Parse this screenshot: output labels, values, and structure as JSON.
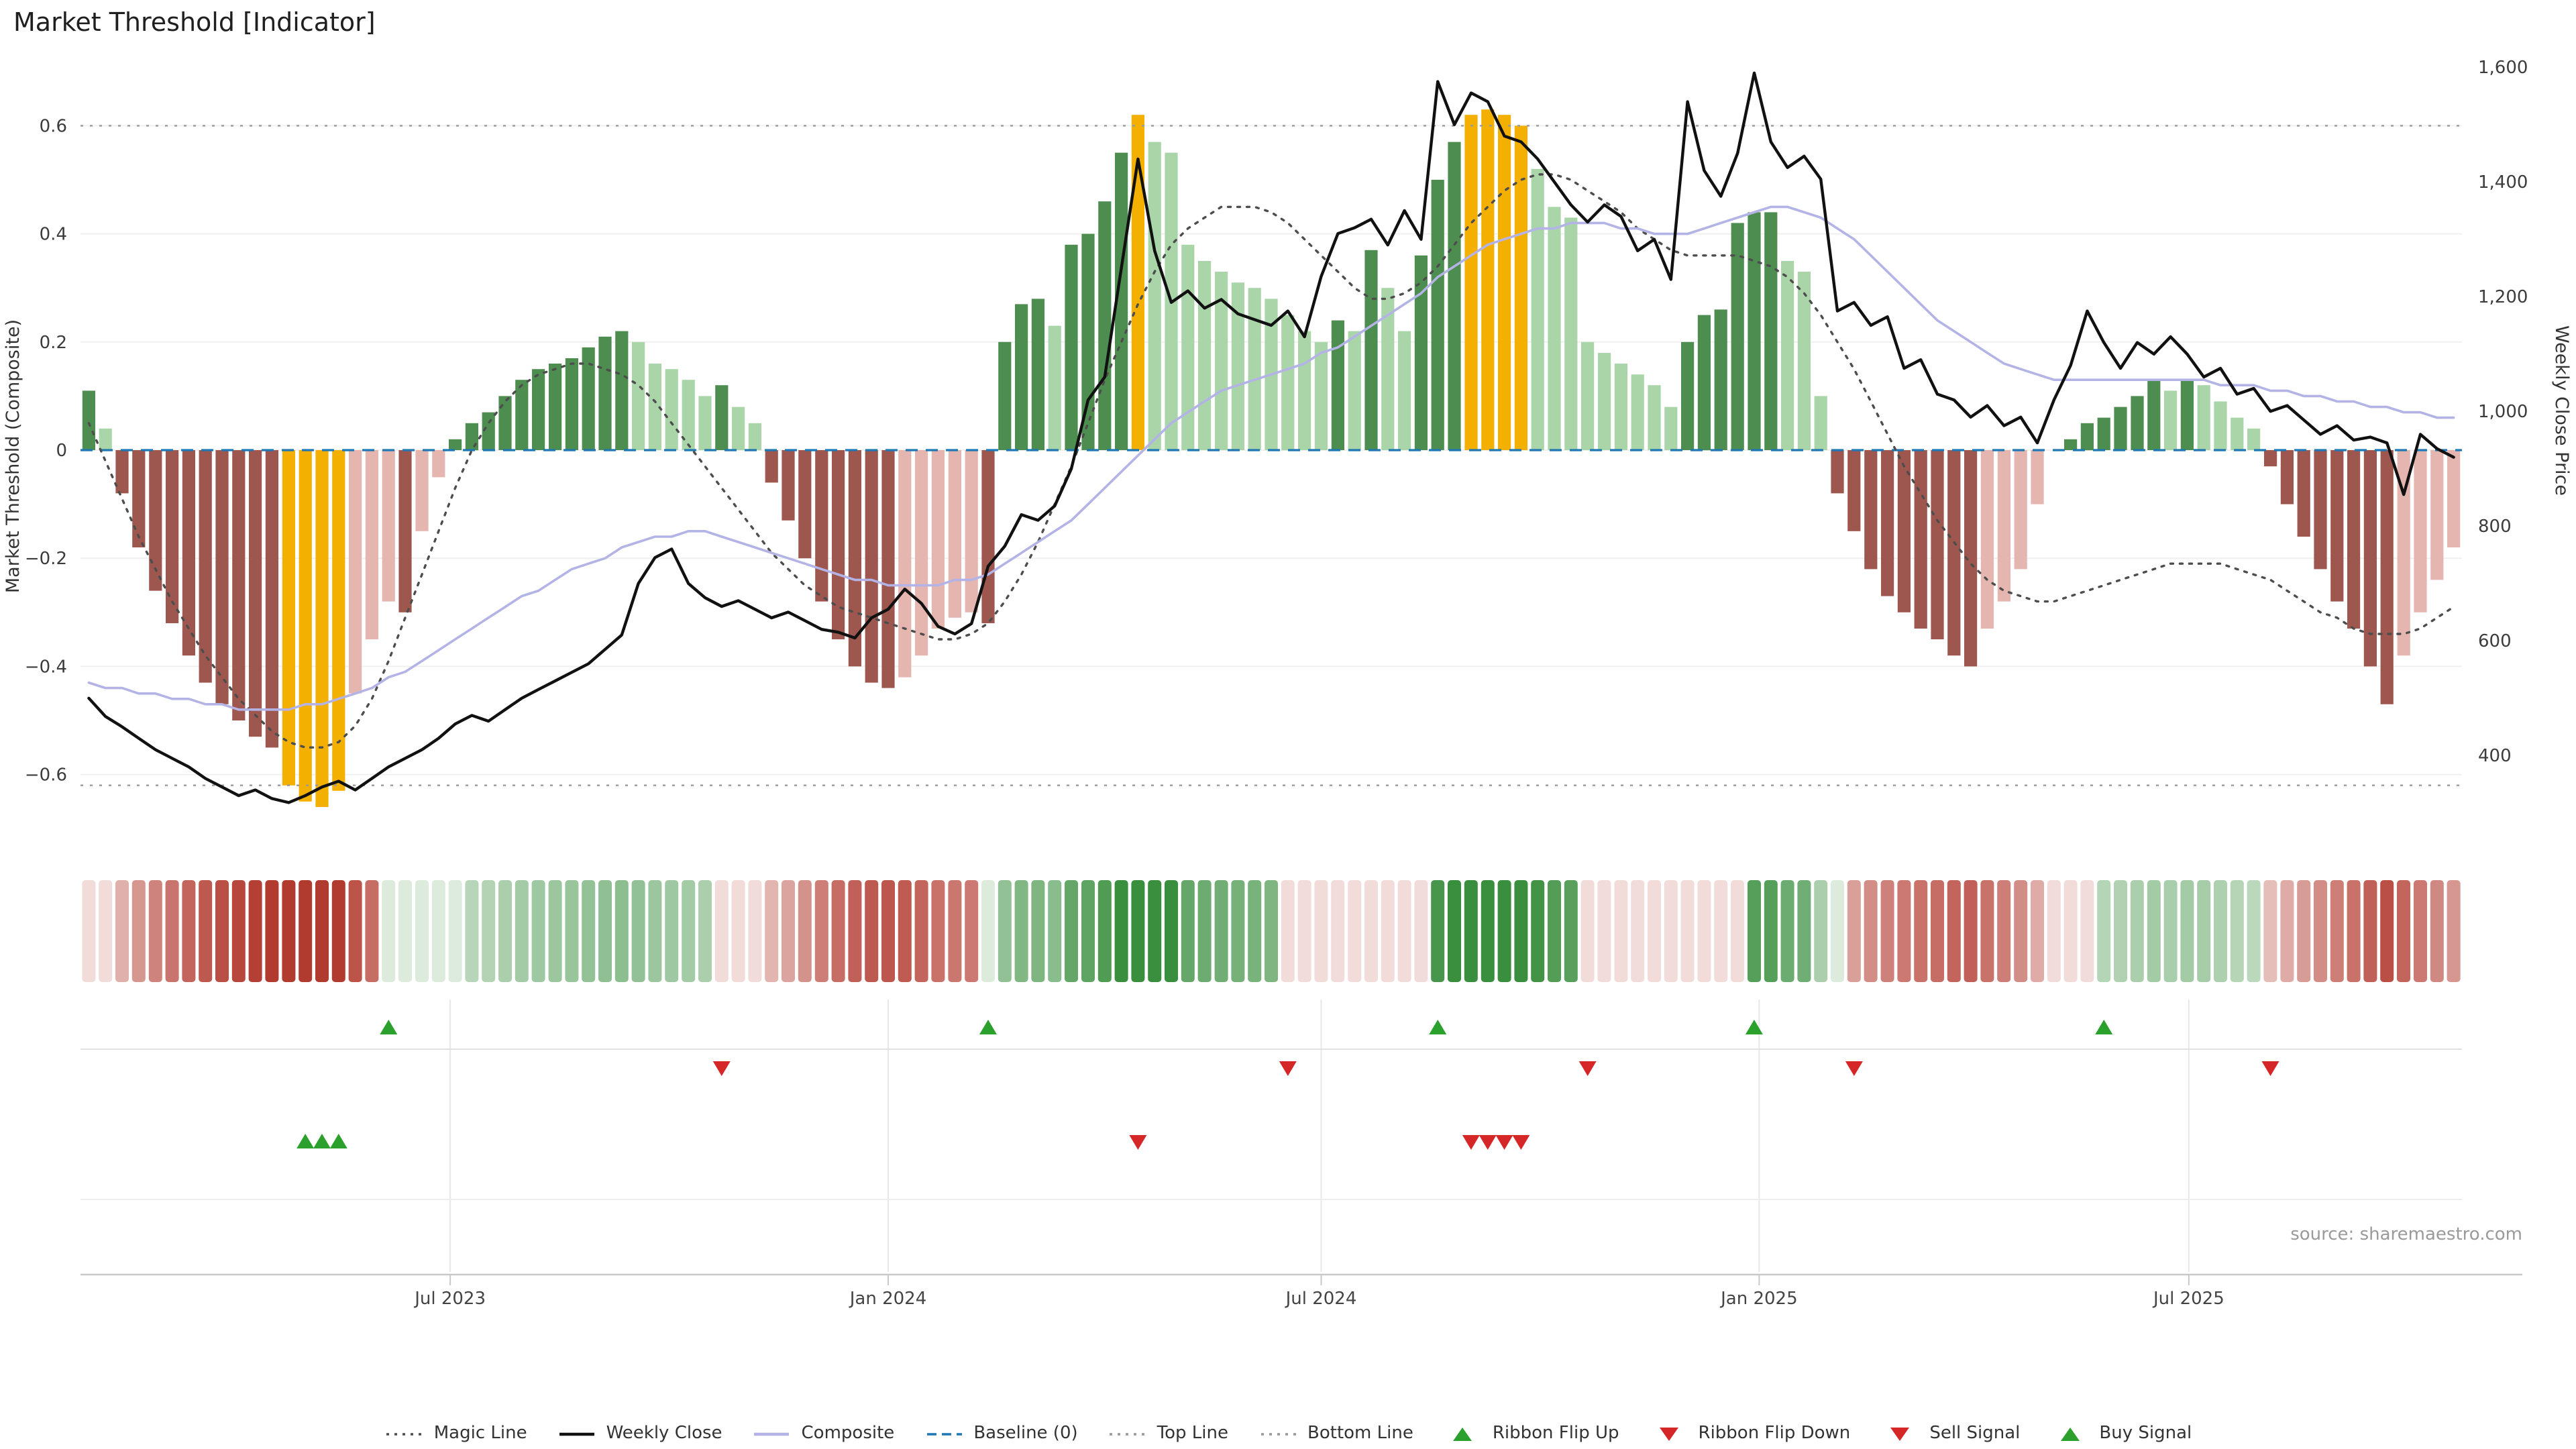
{
  "title": "Market Threshold [Indicator]",
  "source_credit": "source: sharemaestro.com",
  "axes": {
    "left_label": "Market Threshold (Composite)",
    "right_label": "Weekly Close Price"
  },
  "legend": [
    {
      "label": "Magic Line",
      "marker": "dotted",
      "color": "#4d4d4d"
    },
    {
      "label": "Weekly Close",
      "marker": "solid",
      "color": "#111111"
    },
    {
      "label": "Composite",
      "marker": "solid",
      "color": "#b3b3e6"
    },
    {
      "label": "Baseline (0)",
      "marker": "dashed",
      "color": "#1f77b4"
    },
    {
      "label": "Top Line",
      "marker": "dotted",
      "color": "#999999"
    },
    {
      "label": "Bottom Line",
      "marker": "dotted",
      "color": "#999999"
    },
    {
      "label": "Ribbon Flip Up",
      "marker": "tri-up",
      "color": "#2ca02c"
    },
    {
      "label": "Ribbon Flip Down",
      "marker": "tri-down",
      "color": "#d62728"
    },
    {
      "label": "Sell Signal",
      "marker": "tri-down",
      "color": "#d62728"
    },
    {
      "label": "Buy Signal",
      "marker": "tri-up",
      "color": "#2ca02c"
    }
  ],
  "colors": {
    "bar_positive_dark": "#4e8d50",
    "bar_positive_light": "#a9d5a9",
    "bar_negative_dark": "#9e574e",
    "bar_negative_light": "#e5b5b0",
    "bar_signal": "#f4b000",
    "weekly_close": "#111111",
    "composite": "#b3b3e6",
    "magic_line": "#4d4d4d",
    "baseline": "#1f77b4",
    "top_bottom_line": "#999999",
    "ribbon_up": "#3a8f3f",
    "ribbon_down": "#b23b30",
    "flip_up": "#2ca02c",
    "flip_down": "#d62728"
  },
  "chart_data": {
    "type": "combo",
    "n_weeks": 143,
    "x_ticks": [
      {
        "label": "Jul 2023",
        "week": 21.7
      },
      {
        "label": "Jan 2024",
        "week": 48.0
      },
      {
        "label": "Jul 2024",
        "week": 74.0
      },
      {
        "label": "Jan 2025",
        "week": 100.3
      },
      {
        "label": "Jul 2025",
        "week": 126.1
      }
    ],
    "left_axis": {
      "ticks": [
        0.6,
        0.4,
        0.2,
        0,
        -0.2,
        -0.4,
        -0.6
      ],
      "range": [
        -0.75,
        0.73
      ]
    },
    "right_axis": {
      "ticks": [
        1600,
        1400,
        1200,
        1000,
        800,
        600,
        400
      ],
      "range": [
        220,
        1620
      ]
    },
    "reference_lines": {
      "baseline": 0,
      "top_line": 0.6,
      "bottom_line": -0.62
    },
    "threshold_bars": [
      0.11,
      0.04,
      -0.08,
      -0.18,
      -0.26,
      -0.32,
      -0.38,
      -0.43,
      -0.47,
      -0.5,
      -0.53,
      -0.55,
      -0.62,
      -0.65,
      -0.66,
      -0.63,
      -0.45,
      -0.35,
      -0.28,
      -0.3,
      -0.15,
      -0.05,
      0.02,
      0.05,
      0.07,
      0.1,
      0.13,
      0.15,
      0.16,
      0.17,
      0.19,
      0.21,
      0.22,
      0.2,
      0.16,
      0.15,
      0.13,
      0.1,
      0.12,
      0.08,
      0.05,
      -0.06,
      -0.13,
      -0.2,
      -0.28,
      -0.35,
      -0.4,
      -0.43,
      -0.44,
      -0.42,
      -0.38,
      -0.33,
      -0.31,
      -0.3,
      -0.32,
      0.2,
      0.27,
      0.28,
      0.23,
      0.38,
      0.4,
      0.46,
      0.55,
      0.62,
      0.57,
      0.55,
      0.38,
      0.35,
      0.33,
      0.31,
      0.3,
      0.28,
      0.25,
      0.22,
      0.2,
      0.24,
      0.22,
      0.37,
      0.3,
      0.22,
      0.36,
      0.5,
      0.57,
      0.62,
      0.63,
      0.62,
      0.6,
      0.52,
      0.45,
      0.43,
      0.2,
      0.18,
      0.16,
      0.14,
      0.12,
      0.08,
      0.2,
      0.25,
      0.26,
      0.42,
      0.44,
      0.44,
      0.35,
      0.33,
      0.1,
      -0.08,
      -0.15,
      -0.22,
      -0.27,
      -0.3,
      -0.33,
      -0.35,
      -0.38,
      -0.4,
      -0.33,
      -0.28,
      -0.22,
      -0.1,
      0,
      0.02,
      0.05,
      0.06,
      0.08,
      0.1,
      0.13,
      0.11,
      0.13,
      0.12,
      0.09,
      0.06,
      0.04,
      -0.03,
      -0.1,
      -0.16,
      -0.22,
      -0.28,
      -0.33,
      -0.4,
      -0.47,
      -0.38,
      -0.3,
      -0.24,
      -0.18
    ],
    "signal_bar_weeks": [
      12,
      13,
      14,
      15,
      63,
      83,
      84,
      85,
      86
    ],
    "weekly_close": [
      500,
      468,
      450,
      430,
      410,
      395,
      380,
      360,
      345,
      330,
      340,
      325,
      318,
      330,
      345,
      355,
      340,
      360,
      380,
      395,
      410,
      430,
      455,
      470,
      460,
      480,
      500,
      515,
      530,
      545,
      560,
      585,
      610,
      700,
      745,
      760,
      700,
      675,
      660,
      670,
      655,
      640,
      650,
      635,
      620,
      615,
      605,
      640,
      655,
      690,
      665,
      625,
      612,
      630,
      730,
      765,
      820,
      810,
      835,
      900,
      1020,
      1060,
      1250,
      1440,
      1280,
      1190,
      1210,
      1180,
      1195,
      1170,
      1160,
      1150,
      1175,
      1130,
      1235,
      1310,
      1320,
      1335,
      1290,
      1350,
      1300,
      1575,
      1500,
      1555,
      1540,
      1480,
      1470,
      1440,
      1400,
      1360,
      1330,
      1360,
      1340,
      1280,
      1300,
      1230,
      1540,
      1420,
      1375,
      1450,
      1590,
      1470,
      1425,
      1445,
      1405,
      1175,
      1190,
      1150,
      1165,
      1075,
      1090,
      1030,
      1020,
      990,
      1010,
      975,
      990,
      945,
      1020,
      1080,
      1175,
      1120,
      1075,
      1120,
      1100,
      1130,
      1100,
      1060,
      1075,
      1030,
      1040,
      1000,
      1010,
      985,
      960,
      975,
      950,
      955,
      945,
      855,
      960,
      935,
      920
    ],
    "composite": [
      -0.43,
      -0.44,
      -0.44,
      -0.45,
      -0.45,
      -0.46,
      -0.46,
      -0.47,
      -0.47,
      -0.48,
      -0.48,
      -0.48,
      -0.48,
      -0.47,
      -0.47,
      -0.46,
      -0.45,
      -0.44,
      -0.42,
      -0.41,
      -0.39,
      -0.37,
      -0.35,
      -0.33,
      -0.31,
      -0.29,
      -0.27,
      -0.26,
      -0.24,
      -0.22,
      -0.21,
      -0.2,
      -0.18,
      -0.17,
      -0.16,
      -0.16,
      -0.15,
      -0.15,
      -0.16,
      -0.17,
      -0.18,
      -0.19,
      -0.2,
      -0.21,
      -0.22,
      -0.23,
      -0.24,
      -0.24,
      -0.25,
      -0.25,
      -0.25,
      -0.25,
      -0.24,
      -0.24,
      -0.23,
      -0.21,
      -0.19,
      -0.17,
      -0.15,
      -0.13,
      -0.1,
      -0.07,
      -0.04,
      -0.01,
      0.02,
      0.05,
      0.07,
      0.09,
      0.11,
      0.12,
      0.13,
      0.14,
      0.15,
      0.16,
      0.18,
      0.19,
      0.21,
      0.23,
      0.25,
      0.27,
      0.29,
      0.32,
      0.34,
      0.36,
      0.38,
      0.39,
      0.4,
      0.41,
      0.41,
      0.42,
      0.42,
      0.42,
      0.41,
      0.41,
      0.4,
      0.4,
      0.4,
      0.41,
      0.42,
      0.43,
      0.44,
      0.45,
      0.45,
      0.44,
      0.43,
      0.41,
      0.39,
      0.36,
      0.33,
      0.3,
      0.27,
      0.24,
      0.22,
      0.2,
      0.18,
      0.16,
      0.15,
      0.14,
      0.13,
      0.13,
      0.13,
      0.13,
      0.13,
      0.13,
      0.13,
      0.13,
      0.13,
      0.13,
      0.12,
      0.12,
      0.12,
      0.11,
      0.11,
      0.1,
      0.1,
      0.09,
      0.09,
      0.08,
      0.08,
      0.07,
      0.07,
      0.06,
      0.06
    ],
    "magic_line": [
      0.05,
      -0.02,
      -0.09,
      -0.16,
      -0.22,
      -0.28,
      -0.33,
      -0.38,
      -0.42,
      -0.46,
      -0.49,
      -0.52,
      -0.54,
      -0.55,
      -0.55,
      -0.54,
      -0.51,
      -0.46,
      -0.39,
      -0.31,
      -0.23,
      -0.15,
      -0.07,
      0,
      0.05,
      0.09,
      0.12,
      0.14,
      0.15,
      0.16,
      0.16,
      0.15,
      0.14,
      0.12,
      0.09,
      0.05,
      0.01,
      -0.03,
      -0.07,
      -0.11,
      -0.15,
      -0.19,
      -0.22,
      -0.25,
      -0.27,
      -0.29,
      -0.3,
      -0.31,
      -0.32,
      -0.33,
      -0.34,
      -0.35,
      -0.35,
      -0.34,
      -0.32,
      -0.28,
      -0.23,
      -0.17,
      -0.1,
      -0.03,
      0.05,
      0.13,
      0.2,
      0.27,
      0.33,
      0.38,
      0.41,
      0.43,
      0.45,
      0.45,
      0.45,
      0.44,
      0.42,
      0.39,
      0.36,
      0.33,
      0.3,
      0.28,
      0.28,
      0.29,
      0.31,
      0.34,
      0.38,
      0.42,
      0.45,
      0.48,
      0.5,
      0.51,
      0.51,
      0.5,
      0.48,
      0.46,
      0.44,
      0.41,
      0.39,
      0.37,
      0.36,
      0.36,
      0.36,
      0.36,
      0.35,
      0.34,
      0.32,
      0.29,
      0.25,
      0.2,
      0.15,
      0.09,
      0.03,
      -0.03,
      -0.08,
      -0.13,
      -0.17,
      -0.21,
      -0.24,
      -0.26,
      -0.27,
      -0.28,
      -0.28,
      -0.27,
      -0.26,
      -0.25,
      -0.24,
      -0.23,
      -0.22,
      -0.21,
      -0.21,
      -0.21,
      -0.21,
      -0.22,
      -0.23,
      -0.24,
      -0.26,
      -0.28,
      -0.3,
      -0.31,
      -0.33,
      -0.34,
      -0.34,
      -0.34,
      -0.33,
      -0.31,
      -0.29
    ],
    "ribbon_regimes": [
      {
        "dir": "down",
        "from": 0,
        "to": 17
      },
      {
        "dir": "up",
        "from": 18,
        "to": 37
      },
      {
        "dir": "down",
        "from": 38,
        "to": 53
      },
      {
        "dir": "up",
        "from": 54,
        "to": 71
      },
      {
        "dir": "down",
        "from": 72,
        "to": 80
      },
      {
        "dir": "up",
        "from": 81,
        "to": 89
      },
      {
        "dir": "down",
        "from": 90,
        "to": 99
      },
      {
        "dir": "up",
        "from": 100,
        "to": 105
      },
      {
        "dir": "down",
        "from": 106,
        "to": 120
      },
      {
        "dir": "up",
        "from": 121,
        "to": 130
      },
      {
        "dir": "down",
        "from": 131,
        "to": 142
      }
    ],
    "signals": {
      "ribbon_flip_up_weeks": [
        18,
        54,
        81,
        100,
        121
      ],
      "ribbon_flip_down_weeks": [
        38,
        72,
        90,
        106,
        131
      ],
      "buy_signal_weeks": [
        13,
        14,
        15
      ],
      "sell_signal_weeks": [
        63,
        83,
        84,
        85,
        86
      ]
    }
  }
}
